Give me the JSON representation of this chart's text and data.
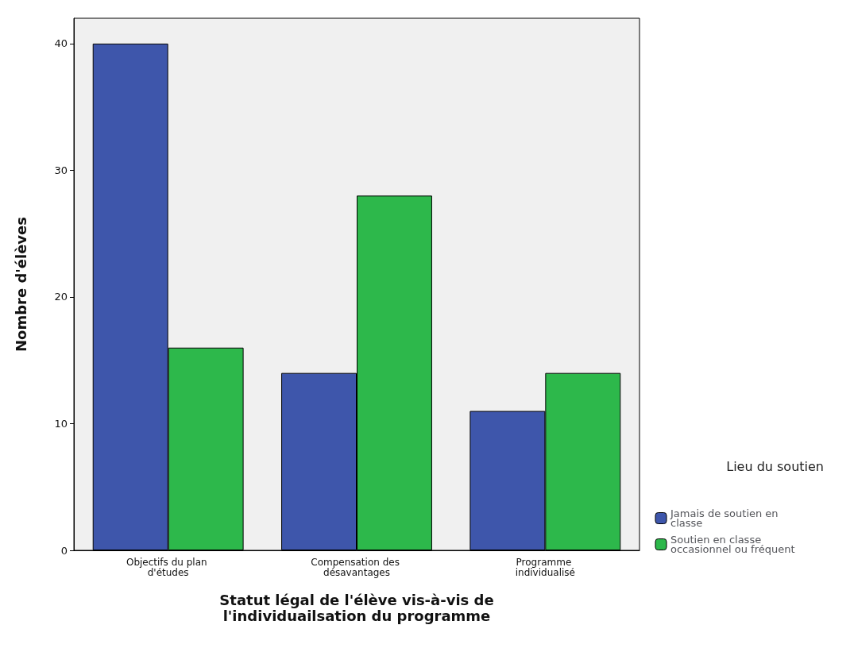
{
  "chart_data": {
    "type": "bar",
    "xlabel": "Statut légal de l'élève vis-à-vis de\nl'individuailsation du programme",
    "ylabel": "Nombre d'élèves",
    "legend_title": "Lieu du soutien",
    "categories": [
      "Objectifs du plan d'études",
      "Compensation des désavantages",
      "Programme individualisé"
    ],
    "series": [
      {
        "name": "Jamais de soutien en classe",
        "color": "#3e56ab",
        "values": [
          40,
          14,
          11
        ]
      },
      {
        "name": "Soutien en classe occasionnel ou fréquent",
        "color": "#2db84b",
        "values": [
          16,
          28,
          14
        ]
      }
    ],
    "ylim": [
      0,
      42
    ],
    "yticks": [
      0,
      10,
      20,
      30,
      40
    ],
    "grid": false,
    "legend": "bottom right"
  }
}
